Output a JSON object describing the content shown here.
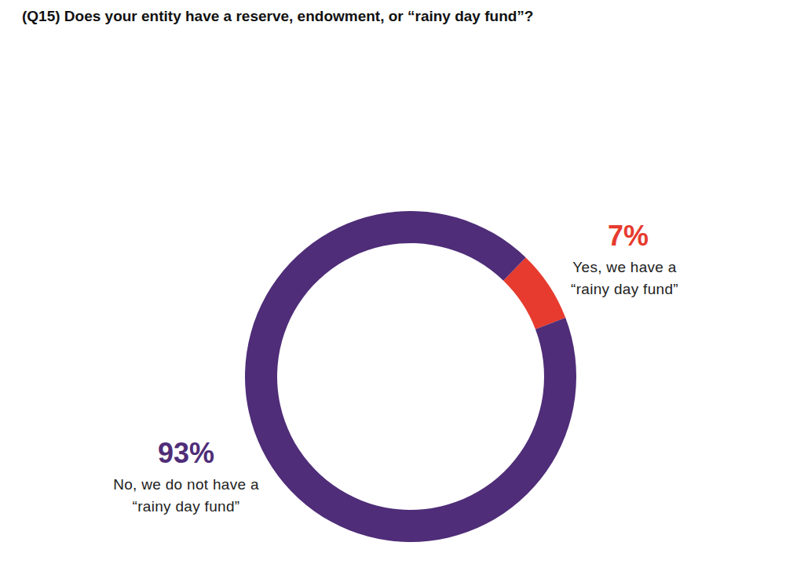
{
  "chart_data": {
    "type": "donut",
    "title": "(Q15) Does your entity have a reserve, endowment, or “rainy day fund”?",
    "categories": [
      "Yes, we have a “rainy day fund”",
      "No, we do not have a “rainy day fund”"
    ],
    "values": [
      7,
      93
    ],
    "value_labels": [
      "7%",
      "93%"
    ],
    "colors": [
      "#e63b2e",
      "#4f2d78"
    ],
    "data_labels": true
  }
}
